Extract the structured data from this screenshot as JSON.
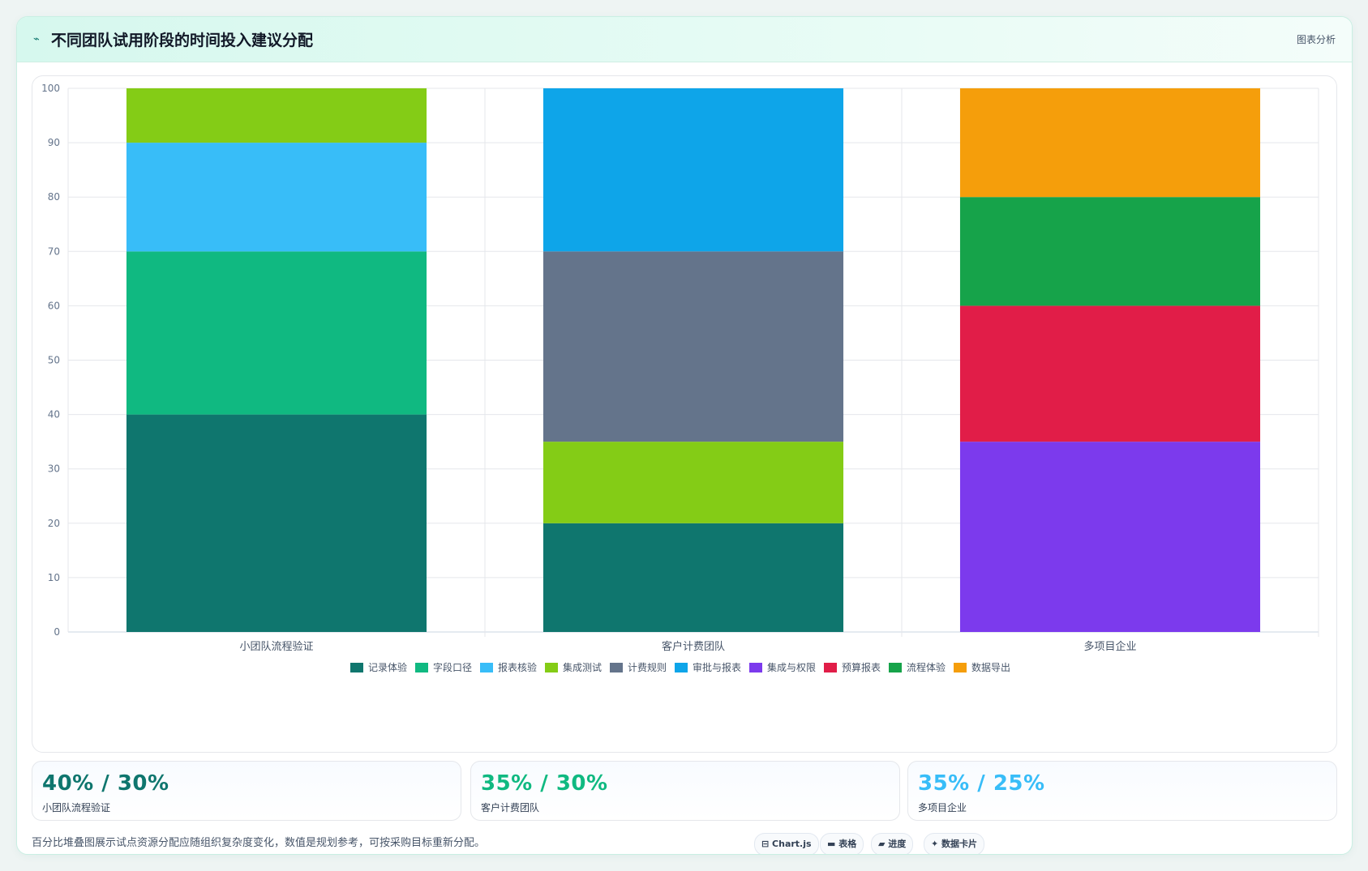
{
  "header": {
    "icon": "trend-icon",
    "title": "不同团队试用阶段的时间投入建议分配",
    "tag": "图表分析"
  },
  "chart_data": {
    "type": "bar",
    "stacked": true,
    "categories": [
      "小团队流程验证",
      "客户计费团队",
      "多项目企业"
    ],
    "ylim": [
      0,
      100
    ],
    "yticks": [
      0,
      10,
      20,
      30,
      40,
      50,
      60,
      70,
      80,
      90,
      100
    ],
    "grid": true,
    "legend_position": "bottom",
    "series": [
      {
        "name": "记录体验",
        "color": "#0f766e",
        "values": [
          40,
          20,
          0
        ]
      },
      {
        "name": "字段口径",
        "color": "#10b981",
        "values": [
          30,
          0,
          0
        ]
      },
      {
        "name": "报表核验",
        "color": "#38bdf8",
        "values": [
          20,
          0,
          0
        ]
      },
      {
        "name": "集成测试",
        "color": "#84cc16",
        "values": [
          10,
          15,
          0
        ]
      },
      {
        "name": "计费规则",
        "color": "#64748b",
        "values": [
          0,
          35,
          0
        ]
      },
      {
        "name": "审批与报表",
        "color": "#0ea5e9",
        "values": [
          0,
          30,
          0
        ]
      },
      {
        "name": "集成与权限",
        "color": "#7c3aed",
        "values": [
          0,
          0,
          35
        ]
      },
      {
        "name": "预算报表",
        "color": "#e11d48",
        "values": [
          0,
          0,
          25
        ]
      },
      {
        "name": "流程体验",
        "color": "#16a34a",
        "values": [
          0,
          0,
          20
        ]
      },
      {
        "name": "数据导出",
        "color": "#f59e0b",
        "values": [
          0,
          0,
          20
        ]
      }
    ]
  },
  "stats": [
    {
      "value": "40% / 30%",
      "label": "小团队流程验证",
      "color": "#0f766e"
    },
    {
      "value": "35% / 30%",
      "label": "客户计费团队",
      "color": "#10b981"
    },
    {
      "value": "35% / 25%",
      "label": "多项目企业",
      "color": "#38bdf8"
    }
  ],
  "footnote": "百分比堆叠图展示试点资源分配应随组织复杂度变化，数值是规划参考，可按采购目标重新分配。",
  "chips": [
    {
      "icon": "chart-icon",
      "label": "⊟ Chart.js"
    },
    {
      "icon": "table-icon",
      "label": "▬ 表格"
    },
    {
      "icon": "progress-icon",
      "label": "▰ 进度"
    },
    {
      "icon": "card-icon",
      "label": "✦ 数据卡片"
    }
  ]
}
